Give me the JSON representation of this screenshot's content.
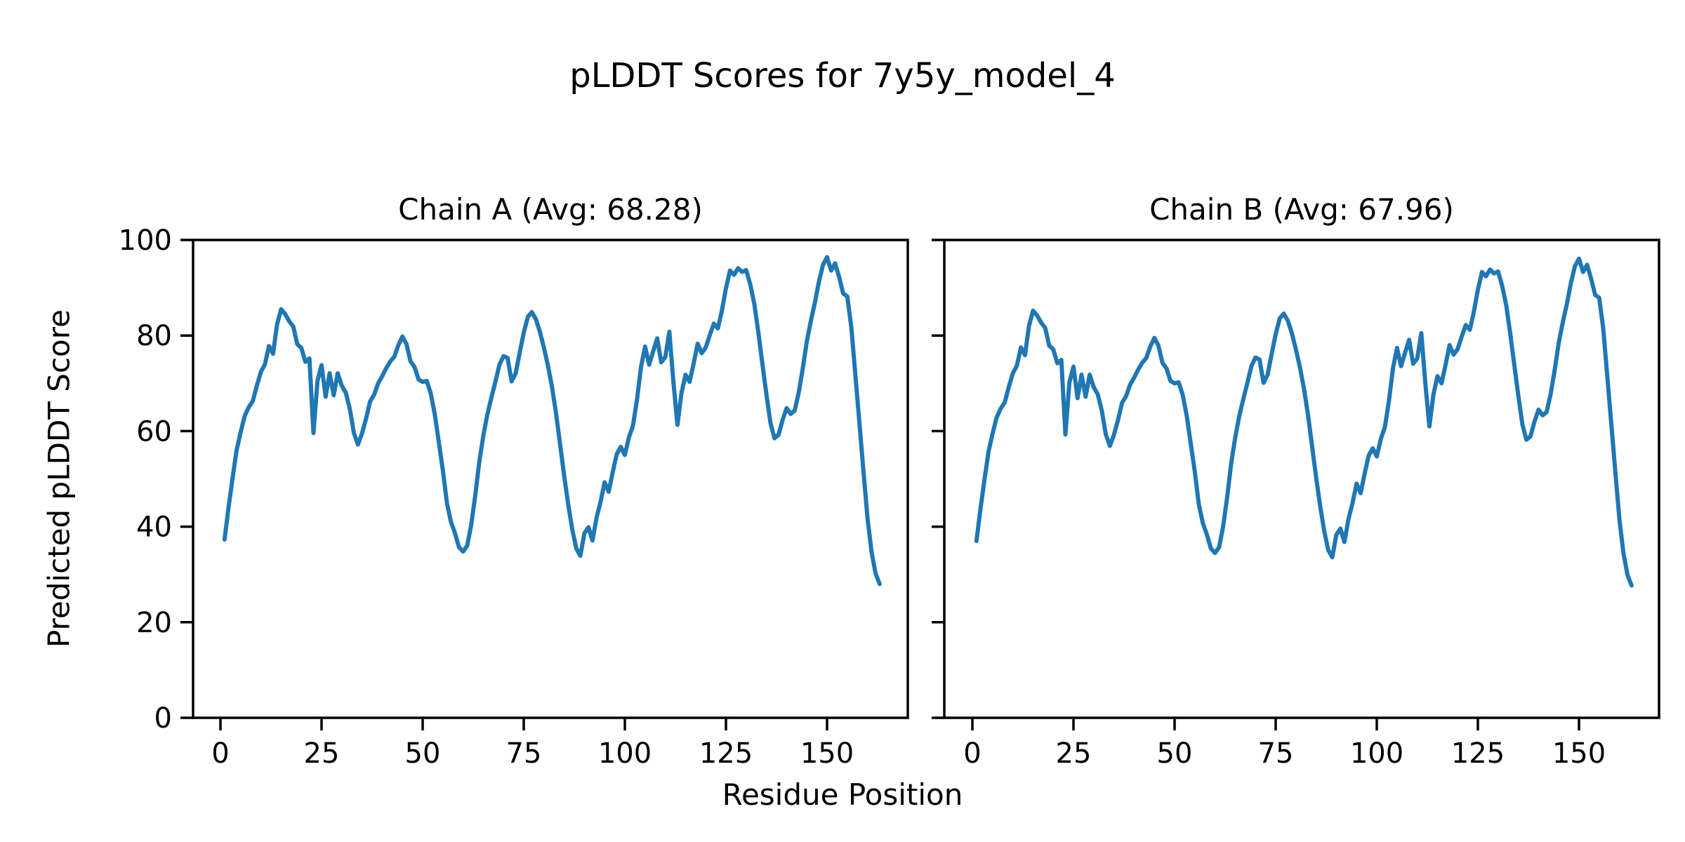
{
  "figure": {
    "title": "pLDDT Scores for 7y5y_model_4"
  },
  "chart_data": {
    "type": "line",
    "title": "pLDDT Scores for 7y5y_model_4",
    "xlabel": "Residue Position",
    "ylabel": "Predicted pLDDT Score",
    "legend": "none",
    "grid": false,
    "line_color": "#1f77b4",
    "axis_color": "#000000",
    "xlim": [
      -8,
      171
    ],
    "ylim": [
      0,
      100
    ],
    "xticks": [
      0,
      25,
      50,
      75,
      100,
      125,
      150
    ],
    "yticks": [
      0,
      20,
      40,
      60,
      80,
      100
    ],
    "x_start_residue": 1,
    "charts": [
      {
        "title": "Chain A (Avg: 68.28)",
        "series_name": "Chain A",
        "avg": 68.28,
        "values": [
          37.3,
          44.0,
          50.2,
          56.0,
          59.8,
          63.2,
          65.0,
          66.3,
          69.5,
          72.4,
          74.0,
          77.8,
          76.2,
          82.3,
          85.5,
          84.5,
          83.0,
          81.9,
          78.2,
          77.4,
          74.5,
          75.2,
          59.6,
          70.5,
          73.8,
          67.2,
          72.1,
          67.5,
          72.1,
          69.5,
          68.0,
          64.6,
          59.6,
          57.2,
          59.5,
          62.6,
          66.2,
          67.6,
          70.0,
          71.5,
          73.2,
          74.6,
          75.6,
          78.0,
          79.8,
          78.2,
          74.6,
          73.4,
          70.8,
          70.3,
          70.5,
          67.9,
          63.5,
          57.7,
          51.8,
          44.9,
          41.0,
          38.6,
          35.7,
          34.8,
          36.0,
          40.3,
          46.5,
          53.5,
          59.0,
          63.5,
          67.0,
          70.4,
          73.9,
          75.7,
          75.3,
          70.4,
          72.1,
          76.4,
          80.6,
          83.9,
          84.9,
          83.4,
          80.8,
          77.4,
          73.6,
          69.2,
          63.6,
          57.2,
          50.6,
          44.6,
          39.4,
          35.4,
          33.9,
          38.6,
          39.9,
          37.1,
          41.9,
          45.2,
          49.3,
          47.3,
          51.4,
          55.2,
          56.7,
          55.0,
          58.7,
          61.1,
          66.6,
          73.4,
          77.7,
          73.9,
          76.7,
          79.4,
          74.4,
          75.5,
          80.8,
          70.4,
          61.3,
          67.9,
          71.8,
          70.3,
          74.1,
          78.3,
          76.3,
          77.5,
          80.1,
          82.5,
          81.5,
          85.2,
          89.9,
          93.6,
          92.7,
          94.1,
          93.3,
          93.7,
          90.7,
          86.7,
          80.7,
          74.2,
          67.7,
          61.7,
          58.5,
          59.2,
          62.3,
          64.8,
          63.6,
          64.3,
          68.1,
          73.1,
          78.8,
          83.1,
          86.9,
          91.3,
          94.8,
          96.4,
          93.6,
          95.1,
          92.2,
          88.8,
          88.2,
          81.7,
          71.8,
          61.7,
          51.7,
          41.8,
          34.7,
          30.2,
          28.0
        ]
      },
      {
        "title": "Chain B (Avg: 67.96)",
        "series_name": "Chain B",
        "avg": 67.96,
        "values": [
          37.0,
          43.7,
          49.9,
          55.7,
          59.5,
          62.9,
          64.7,
          66.0,
          69.2,
          72.1,
          73.7,
          77.5,
          75.9,
          82.0,
          85.2,
          84.2,
          82.7,
          81.6,
          77.9,
          77.1,
          74.2,
          74.9,
          59.3,
          70.2,
          73.5,
          66.9,
          71.8,
          67.2,
          71.8,
          69.2,
          67.7,
          64.3,
          59.3,
          56.9,
          59.2,
          62.3,
          65.9,
          67.3,
          69.7,
          71.2,
          72.9,
          74.3,
          75.3,
          77.7,
          79.5,
          77.9,
          74.3,
          73.1,
          70.5,
          70.0,
          70.2,
          67.6,
          63.2,
          57.4,
          51.5,
          44.6,
          40.7,
          38.3,
          35.4,
          34.5,
          35.7,
          40.0,
          46.2,
          53.2,
          58.7,
          63.2,
          66.7,
          70.1,
          73.6,
          75.4,
          75.0,
          70.1,
          71.8,
          76.1,
          80.3,
          83.6,
          84.6,
          83.1,
          80.5,
          77.1,
          73.3,
          68.9,
          63.3,
          56.9,
          50.3,
          44.3,
          39.1,
          35.1,
          33.6,
          38.3,
          39.6,
          36.8,
          41.6,
          44.9,
          49.0,
          47.0,
          51.1,
          54.9,
          56.4,
          54.7,
          58.4,
          60.8,
          66.3,
          73.1,
          77.4,
          73.6,
          76.4,
          79.1,
          74.1,
          75.2,
          80.5,
          70.1,
          61.0,
          67.6,
          71.5,
          70.0,
          73.8,
          78.0,
          76.0,
          77.2,
          79.8,
          82.2,
          81.2,
          84.9,
          89.6,
          93.3,
          92.4,
          93.8,
          93.0,
          93.4,
          90.4,
          86.4,
          80.4,
          73.9,
          67.4,
          61.4,
          58.2,
          58.9,
          62.0,
          64.5,
          63.3,
          64.0,
          67.8,
          72.8,
          78.5,
          82.8,
          86.6,
          91.0,
          94.5,
          96.1,
          93.3,
          94.8,
          91.9,
          88.5,
          87.9,
          81.4,
          71.5,
          61.4,
          51.4,
          41.5,
          34.4,
          29.9,
          27.7
        ]
      }
    ]
  }
}
